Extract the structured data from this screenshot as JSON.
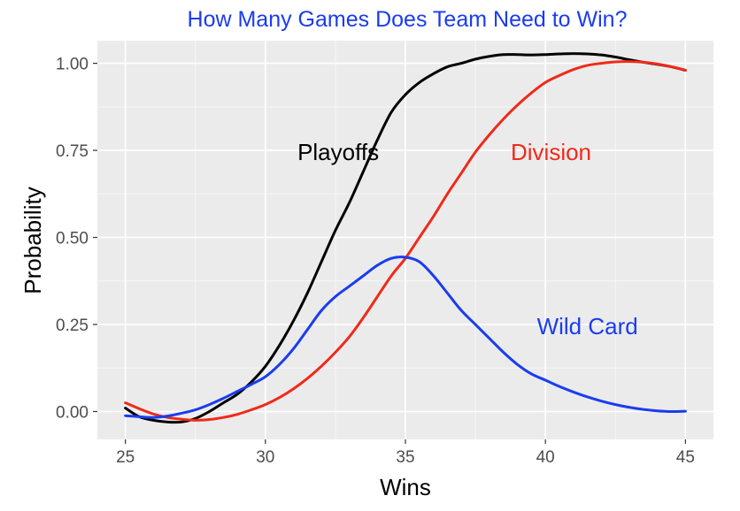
{
  "chart_data": {
    "type": "line",
    "title": "How Many Games Does Team Need to Win?",
    "xlabel": "Wins",
    "ylabel": "Probability",
    "xlim": [
      24,
      46
    ],
    "ylim": [
      -0.08,
      1.065
    ],
    "xticks": [
      25,
      30,
      35,
      40,
      45
    ],
    "xtick_labels": [
      "25",
      "30",
      "35",
      "40",
      "45"
    ],
    "yticks": [
      0,
      0.25,
      0.5,
      0.75,
      1.0
    ],
    "ytick_labels": [
      "0.00",
      "0.25",
      "0.50",
      "0.75",
      "1.00"
    ],
    "grid": true,
    "legend": "none",
    "background": "#ebebeb",
    "title_color": "#1a3cf0",
    "series": [
      {
        "name": "Playoffs",
        "color": "#000000",
        "label_at": [
          32.6,
          0.745
        ],
        "x": [
          25,
          25.5,
          26,
          26.5,
          27,
          27.5,
          28,
          28.5,
          29,
          29.5,
          30,
          30.5,
          31,
          31.5,
          32,
          32.5,
          33,
          33.5,
          34,
          34.5,
          35,
          35.5,
          36,
          36.5,
          37,
          37.5,
          38,
          38.5,
          39,
          39.5,
          40,
          40.5,
          41,
          41.5,
          42,
          42.5,
          43,
          43.5,
          44,
          44.5,
          45
        ],
        "values": [
          0.01,
          -0.015,
          -0.025,
          -0.03,
          -0.03,
          -0.02,
          0.0,
          0.025,
          0.05,
          0.085,
          0.13,
          0.19,
          0.26,
          0.34,
          0.43,
          0.52,
          0.6,
          0.69,
          0.78,
          0.86,
          0.91,
          0.945,
          0.97,
          0.99,
          1.0,
          1.012,
          1.02,
          1.025,
          1.025,
          1.024,
          1.025,
          1.027,
          1.028,
          1.027,
          1.024,
          1.018,
          1.01,
          1.003,
          0.997,
          0.99,
          0.98
        ]
      },
      {
        "name": "Division",
        "color": "#f02a19",
        "label_at": [
          40.2,
          0.745
        ],
        "x": [
          25,
          25.5,
          26,
          26.5,
          27,
          27.5,
          28,
          28.5,
          29,
          29.5,
          30,
          30.5,
          31,
          31.5,
          32,
          32.5,
          33,
          33.5,
          34,
          34.5,
          35,
          35.5,
          36,
          36.5,
          37,
          37.5,
          38,
          38.5,
          39,
          39.5,
          40,
          40.5,
          41,
          41.5,
          42,
          42.5,
          43,
          43.5,
          44,
          44.5,
          45
        ],
        "values": [
          0.025,
          0.008,
          -0.007,
          -0.017,
          -0.022,
          -0.025,
          -0.023,
          -0.017,
          -0.008,
          0.005,
          0.02,
          0.04,
          0.065,
          0.095,
          0.13,
          0.17,
          0.215,
          0.27,
          0.33,
          0.39,
          0.44,
          0.5,
          0.56,
          0.625,
          0.685,
          0.745,
          0.795,
          0.84,
          0.88,
          0.915,
          0.945,
          0.965,
          0.982,
          0.994,
          1.0,
          1.004,
          1.005,
          1.003,
          0.998,
          0.99,
          0.98
        ]
      },
      {
        "name": "Wild Card",
        "color": "#1a3cf0",
        "label_at": [
          41.5,
          0.245
        ],
        "x": [
          25,
          25.5,
          26,
          26.5,
          27,
          27.5,
          28,
          28.5,
          29,
          29.5,
          30,
          30.5,
          31,
          31.5,
          32,
          32.5,
          33,
          33.5,
          34,
          34.5,
          35,
          35.5,
          36,
          36.5,
          37,
          37.5,
          38,
          38.5,
          39,
          39.5,
          40,
          40.5,
          41,
          41.5,
          42,
          42.5,
          43,
          43.5,
          44,
          44.5,
          45
        ],
        "values": [
          -0.012,
          -0.015,
          -0.017,
          -0.013,
          -0.005,
          0.005,
          0.02,
          0.038,
          0.058,
          0.078,
          0.1,
          0.135,
          0.18,
          0.235,
          0.29,
          0.33,
          0.36,
          0.39,
          0.42,
          0.44,
          0.443,
          0.43,
          0.39,
          0.34,
          0.29,
          0.25,
          0.21,
          0.17,
          0.135,
          0.108,
          0.09,
          0.072,
          0.056,
          0.042,
          0.03,
          0.02,
          0.012,
          0.006,
          0.002,
          0.0,
          0.001
        ]
      }
    ]
  }
}
